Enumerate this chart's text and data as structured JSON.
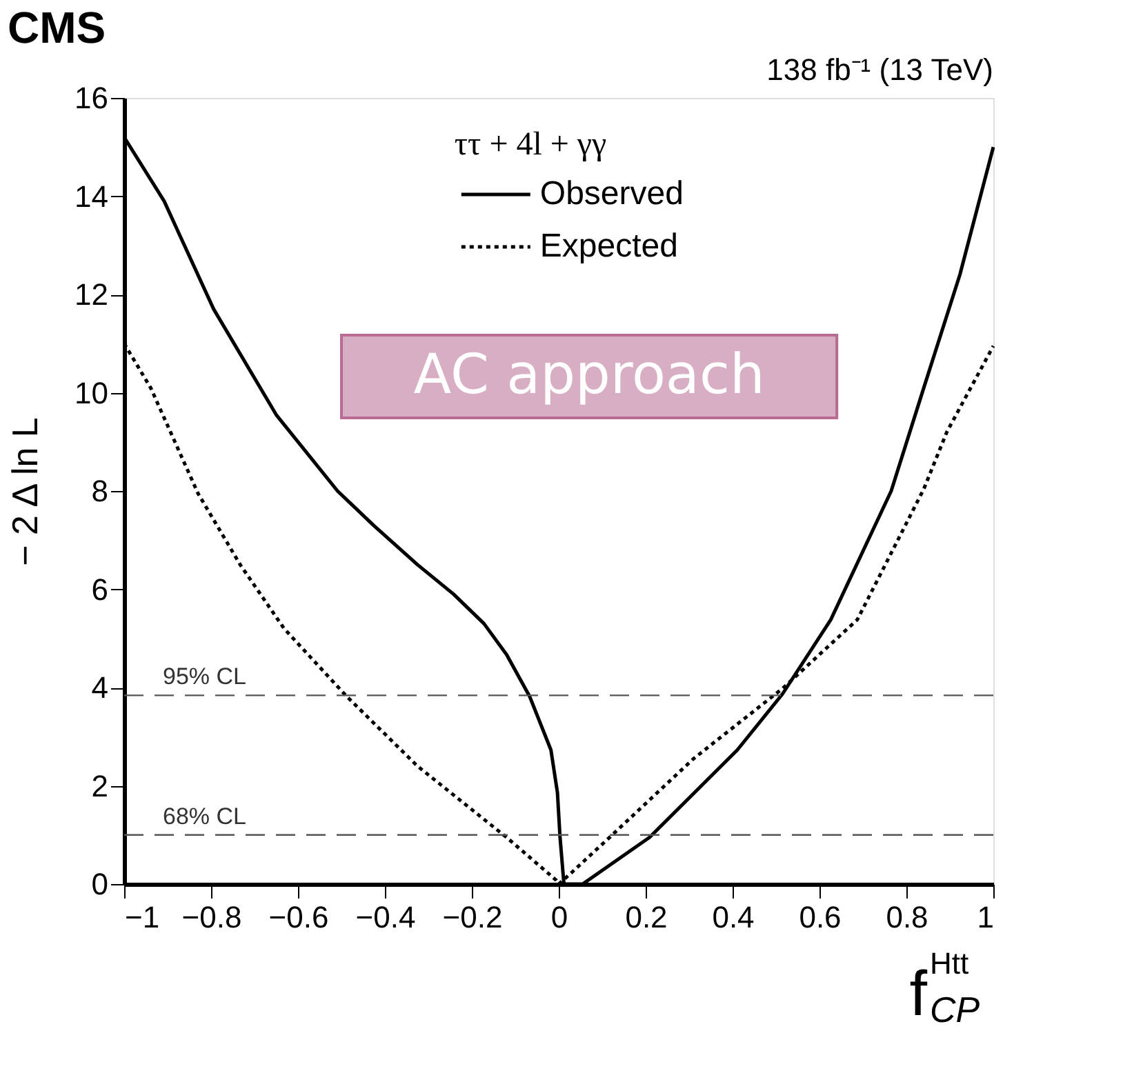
{
  "chart_data": {
    "type": "line",
    "title": "CMS",
    "subtitle": "138 fb⁻¹ (13 TeV)",
    "xlabel": "f$^{Htt}$$_{CP}$",
    "ylabel": "− 2 Δ ln L",
    "legend_title": "ττ + 4l + γγ",
    "xlim": [
      -1,
      1
    ],
    "ylim": [
      0,
      16
    ],
    "xticks": [
      {
        "value": -1,
        "label": "−1"
      },
      {
        "value": -0.8,
        "label": "−0.8"
      },
      {
        "value": -0.6,
        "label": "−0.6"
      },
      {
        "value": -0.4,
        "label": "−0.4"
      },
      {
        "value": -0.2,
        "label": "−0.2"
      },
      0,
      0.2,
      0.4,
      0.6,
      0.8,
      1
    ],
    "yticks": [
      0,
      2,
      4,
      6,
      8,
      10,
      12,
      14,
      16
    ],
    "grid": false,
    "legend": "top",
    "marker": "none",
    "ref_lines": [
      {
        "axis": "y",
        "value": 3.84,
        "label": "95% CL",
        "color": "#555555",
        "line_style": "dashed"
      },
      {
        "axis": "y",
        "value": 1,
        "label": "68% CL",
        "color": "#555555",
        "line_style": "dashed"
      }
    ],
    "annotations": [
      "AC approach"
    ],
    "series": [
      {
        "name": "Observed",
        "color": "#000000",
        "line_style": "solid",
        "x": [
          -1,
          -0.908,
          -0.794,
          -0.65,
          -0.509,
          -0.426,
          -0.325,
          -0.242,
          -0.172,
          -0.12,
          -0.067,
          -0.018,
          -0.003,
          0.003,
          0.012,
          0.055,
          0.209,
          0.411,
          0.515,
          0.626,
          0.765,
          0.84,
          0.923,
          1
        ],
        "values": [
          15.2,
          13.9,
          11.7,
          9.55,
          8.0,
          7.3,
          6.5,
          5.9,
          5.3,
          4.67,
          3.82,
          2.73,
          1.86,
          0.95,
          0,
          0,
          0.95,
          2.73,
          3.87,
          5.38,
          8.0,
          10.1,
          12.4,
          15.0
        ]
      },
      {
        "name": "Expected",
        "color": "#000000",
        "line_style": "dotted",
        "x": [
          -1,
          -0.939,
          -0.83,
          -0.733,
          -0.632,
          -0.488,
          -0.325,
          -0.12,
          -0.006,
          0,
          0.034,
          0.117,
          0.31,
          0.515,
          0.687,
          0.84,
          0.893,
          1
        ],
        "values": [
          11.0,
          10.1,
          7.95,
          6.5,
          5.2,
          3.82,
          2.4,
          0.95,
          0.08,
          0,
          0.27,
          0.95,
          2.55,
          3.98,
          5.38,
          8.04,
          9.2,
          10.95
        ]
      }
    ]
  }
}
